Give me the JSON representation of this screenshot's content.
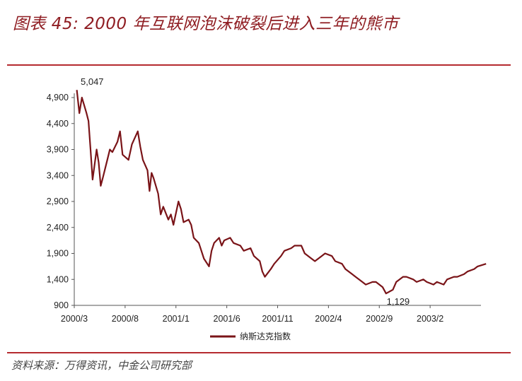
{
  "header": {
    "title": "图表 45: 2000 年互联网泡沫破裂后进入三年的熊市"
  },
  "footer": {
    "source": "资料来源：万得资讯，中金公司研究部"
  },
  "colors": {
    "accent": "#8f1d22",
    "rule": "#b52b2f",
    "series": "#7a1418"
  },
  "chart_data": {
    "type": "line",
    "title": "",
    "xlabel": "",
    "ylabel": "",
    "ylim": [
      900,
      5047
    ],
    "y_ticks": [
      "4,900",
      "4,400",
      "3,900",
      "3,400",
      "2,900",
      "2,400",
      "1,900",
      "1,400",
      "900"
    ],
    "x_ticks": [
      "2000/3",
      "2000/8",
      "2001/1",
      "2001/6",
      "2001/11",
      "2002/4",
      "2002/9",
      "2003/2"
    ],
    "legend": "bottom-center",
    "grid": false,
    "annotations": [
      {
        "text": "5,047",
        "x": "2000/3",
        "y": 5047
      },
      {
        "text": "1,129",
        "x": "2002/10",
        "y": 1129
      }
    ],
    "series": [
      {
        "name": "纳斯达克指数",
        "x": [
          "2000/3",
          "2000/3",
          "2000/3",
          "2000/4",
          "2000/4",
          "2000/4",
          "2000/4",
          "2000/5",
          "2000/5",
          "2000/5",
          "2000/5",
          "2000/6",
          "2000/6",
          "2000/6",
          "2000/7",
          "2000/7",
          "2000/7",
          "2000/8",
          "2000/8",
          "2000/9",
          "2000/9",
          "2000/9",
          "2000/10",
          "2000/10",
          "2000/10",
          "2000/10",
          "2000/11",
          "2000/11",
          "2000/11",
          "2000/12",
          "2000/12",
          "2000/12",
          "2001/1",
          "2001/1",
          "2001/1",
          "2001/2",
          "2001/2",
          "2001/2",
          "2001/3",
          "2001/3",
          "2001/3",
          "2001/4",
          "2001/4",
          "2001/4",
          "2001/5",
          "2001/5",
          "2001/5",
          "2001/6",
          "2001/6",
          "2001/7",
          "2001/7",
          "2001/8",
          "2001/8",
          "2001/9",
          "2001/9",
          "2001/9",
          "2001/10",
          "2001/10",
          "2001/11",
          "2001/11",
          "2001/12",
          "2001/12",
          "2002/1",
          "2002/1",
          "2002/2",
          "2002/2",
          "2002/3",
          "2002/3",
          "2002/4",
          "2002/4",
          "2002/5",
          "2002/5",
          "2002/6",
          "2002/6",
          "2002/7",
          "2002/7",
          "2002/8",
          "2002/8",
          "2002/9",
          "2002/9",
          "2002/10",
          "2002/10",
          "2002/11",
          "2002/11",
          "2002/12",
          "2002/12",
          "2003/1",
          "2003/1",
          "2003/2",
          "2003/2",
          "2003/3",
          "2003/3",
          "2003/4",
          "2003/4",
          "2003/5",
          "2003/5",
          "2003/6",
          "2003/6",
          "2003/7"
        ],
        "values": [
          5047,
          4600,
          4900,
          4600,
          4450,
          3900,
          3320,
          3900,
          3650,
          3200,
          3350,
          3700,
          3900,
          3850,
          4050,
          4250,
          3800,
          3700,
          4000,
          4250,
          3950,
          3700,
          3500,
          3100,
          3450,
          3350,
          3050,
          2650,
          2800,
          2550,
          2650,
          2450,
          2900,
          2750,
          2500,
          2550,
          2450,
          2200,
          2100,
          1950,
          1800,
          1650,
          1950,
          2100,
          2200,
          2050,
          2150,
          2200,
          2100,
          2050,
          1950,
          2000,
          1850,
          1750,
          1550,
          1450,
          1600,
          1700,
          1850,
          1950,
          2000,
          2050,
          2050,
          1900,
          1800,
          1750,
          1850,
          1900,
          1850,
          1750,
          1700,
          1600,
          1500,
          1450,
          1350,
          1300,
          1350,
          1350,
          1250,
          1129,
          1200,
          1350,
          1450,
          1450,
          1400,
          1350,
          1400,
          1350,
          1300,
          1350,
          1300,
          1400,
          1450,
          1450,
          1500,
          1550,
          1600,
          1650,
          1700
        ]
      }
    ]
  }
}
